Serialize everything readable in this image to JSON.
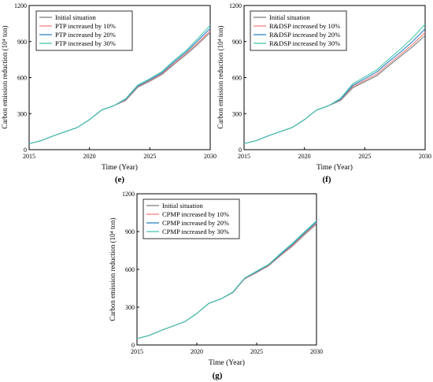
{
  "chart_data": [
    {
      "type": "line",
      "panel_label": "(e)",
      "xlabel": "Time (Year)",
      "ylabel": "Carbon emission reduction (10⁴ ton)",
      "xlim": [
        2015,
        2030
      ],
      "ylim": [
        0,
        1200
      ],
      "xticks": [
        2015,
        2020,
        2025,
        2030
      ],
      "yticks": [
        0,
        300,
        600,
        900,
        1200
      ],
      "legend_position": "top-left",
      "x": [
        2015,
        2016,
        2017,
        2018,
        2019,
        2020,
        2021,
        2022,
        2023,
        2024,
        2025,
        2026,
        2027,
        2028,
        2029,
        2030
      ],
      "series": [
        {
          "name": "Initial situation",
          "color": "#7f7f7f",
          "values": [
            50,
            75,
            115,
            150,
            185,
            250,
            330,
            365,
            410,
            520,
            570,
            625,
            710,
            790,
            880,
            975
          ]
        },
        {
          "name": "PTP increased by 10%",
          "color": "#f08080",
          "values": [
            50,
            75,
            115,
            150,
            185,
            250,
            330,
            365,
            415,
            525,
            575,
            632,
            718,
            800,
            892,
            990
          ]
        },
        {
          "name": "PTP increased by 20%",
          "color": "#2e86c1",
          "values": [
            50,
            75,
            115,
            150,
            185,
            250,
            330,
            365,
            420,
            530,
            582,
            640,
            730,
            812,
            910,
            1010
          ]
        },
        {
          "name": "PTP increased by 30%",
          "color": "#48c9b0",
          "values": [
            50,
            75,
            115,
            150,
            185,
            250,
            330,
            365,
            425,
            538,
            590,
            650,
            742,
            825,
            928,
            1035
          ]
        }
      ]
    },
    {
      "type": "line",
      "panel_label": "(f)",
      "xlabel": "Time (Year)",
      "ylabel": "Carbon emission reduction (10⁴ ton)",
      "xlim": [
        2015,
        2030
      ],
      "ylim": [
        0,
        1200
      ],
      "xticks": [
        2015,
        2020,
        2025,
        2030
      ],
      "yticks": [
        0,
        300,
        600,
        900,
        1200
      ],
      "legend_position": "top-left",
      "x": [
        2015,
        2016,
        2017,
        2018,
        2019,
        2020,
        2021,
        2022,
        2023,
        2024,
        2025,
        2026,
        2027,
        2028,
        2029,
        2030
      ],
      "series": [
        {
          "name": "Initial situation",
          "color": "#7f7f7f",
          "values": [
            50,
            75,
            115,
            150,
            185,
            250,
            330,
            365,
            410,
            515,
            565,
            615,
            700,
            780,
            860,
            950
          ]
        },
        {
          "name": "R&DSP increased by 10%",
          "color": "#f08080",
          "values": [
            50,
            75,
            115,
            150,
            185,
            250,
            330,
            365,
            415,
            525,
            575,
            630,
            715,
            795,
            880,
            975
          ]
        },
        {
          "name": "R&DSP increased by 20%",
          "color": "#2e86c1",
          "values": [
            50,
            75,
            115,
            150,
            185,
            250,
            330,
            365,
            420,
            535,
            590,
            648,
            735,
            815,
            905,
            1005
          ]
        },
        {
          "name": "R&DSP increased by 30%",
          "color": "#48c9b0",
          "values": [
            50,
            75,
            115,
            150,
            185,
            250,
            330,
            365,
            428,
            548,
            605,
            665,
            755,
            840,
            935,
            1045
          ]
        }
      ]
    },
    {
      "type": "line",
      "panel_label": "(g)",
      "xlabel": "Time (Year)",
      "ylabel": "Carbon emission reduction (10⁴ ton)",
      "xlim": [
        2015,
        2030
      ],
      "ylim": [
        0,
        1200
      ],
      "xticks": [
        2015,
        2020,
        2025,
        2030
      ],
      "yticks": [
        0,
        300,
        600,
        900,
        1200
      ],
      "legend_position": "top-left",
      "x": [
        2015,
        2016,
        2017,
        2018,
        2019,
        2020,
        2021,
        2022,
        2023,
        2024,
        2025,
        2026,
        2027,
        2028,
        2029,
        2030
      ],
      "series": [
        {
          "name": "Initial situation",
          "color": "#7f7f7f",
          "values": [
            50,
            75,
            115,
            150,
            185,
            250,
            330,
            365,
            415,
            525,
            575,
            628,
            710,
            785,
            875,
            960
          ]
        },
        {
          "name": "CPMP increased by 10%",
          "color": "#f08080",
          "values": [
            50,
            75,
            115,
            150,
            185,
            250,
            330,
            365,
            416,
            527,
            578,
            632,
            715,
            792,
            882,
            968
          ]
        },
        {
          "name": "CPMP increased by 20%",
          "color": "#2e86c1",
          "values": [
            50,
            75,
            115,
            150,
            185,
            250,
            330,
            365,
            418,
            530,
            582,
            636,
            720,
            800,
            890,
            977
          ]
        },
        {
          "name": "CPMP increased by 30%",
          "color": "#48c9b0",
          "values": [
            50,
            75,
            115,
            150,
            185,
            250,
            330,
            365,
            420,
            532,
            586,
            640,
            726,
            808,
            898,
            985
          ]
        }
      ]
    }
  ]
}
